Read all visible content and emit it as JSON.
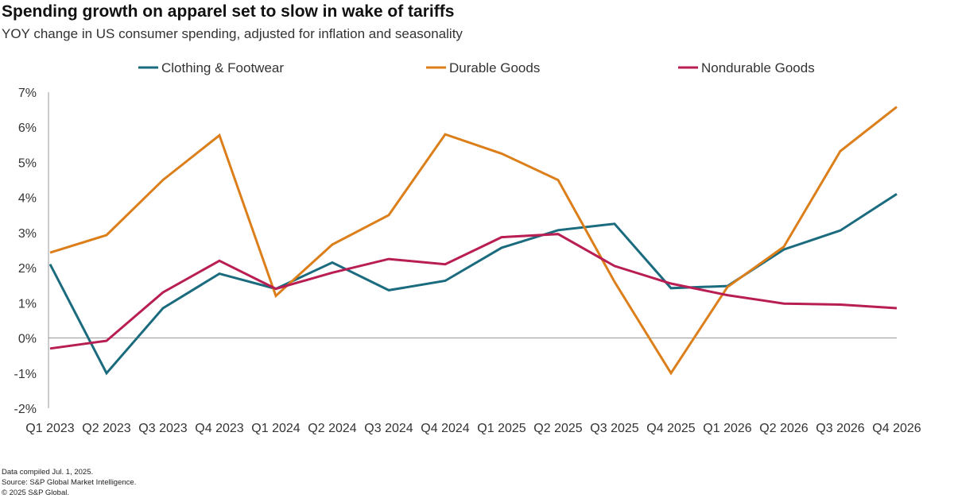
{
  "header": {
    "title": "Spending growth on apparel set to slow in wake of tariffs",
    "subtitle": "YOY change in US consumer spending, adjusted for inflation and seasonality"
  },
  "chart_data": {
    "type": "line",
    "title": "Spending growth on apparel set to slow in wake of tariffs",
    "subtitle": "YOY change in US consumer spending, adjusted for inflation and seasonality",
    "xlabel": "",
    "ylabel": "",
    "ylim": [
      -2,
      7
    ],
    "yticks": [
      7,
      6,
      5,
      4,
      3,
      2,
      1,
      0,
      -1,
      -2
    ],
    "ytick_labels": [
      "7%",
      "6%",
      "5%",
      "4%",
      "3%",
      "2%",
      "1%",
      "0%",
      "-1%",
      "-2%"
    ],
    "grid": false,
    "legend_position": "top",
    "categories": [
      "Q1 2023",
      "Q2 2023",
      "Q3 2023",
      "Q4 2023",
      "Q1 2024",
      "Q2 2024",
      "Q3 2024",
      "Q4 2024",
      "Q1 2025",
      "Q2 2025",
      "Q3 2025",
      "Q4 2025",
      "Q1 2026",
      "Q2 2026",
      "Q3 2026",
      "Q4 2026"
    ],
    "series": [
      {
        "name": "Clothing & Footwear",
        "color": "#1b6b7f",
        "values": [
          2.1,
          -1.0,
          0.85,
          1.83,
          1.4,
          2.15,
          1.36,
          1.63,
          2.57,
          3.07,
          3.25,
          1.42,
          1.48,
          2.52,
          3.06,
          4.1
        ]
      },
      {
        "name": "Durable Goods",
        "color": "#dc7f1b",
        "values": [
          2.43,
          2.93,
          4.5,
          5.77,
          1.2,
          2.66,
          3.5,
          5.8,
          5.25,
          4.5,
          1.6,
          -1.0,
          1.45,
          2.6,
          5.32,
          6.58
        ]
      },
      {
        "name": "Nondurable Goods",
        "color": "#b81d53",
        "values": [
          -0.3,
          -0.08,
          1.3,
          2.2,
          1.4,
          1.86,
          2.25,
          2.1,
          2.87,
          2.96,
          2.05,
          1.55,
          1.22,
          0.98,
          0.95,
          0.85
        ]
      }
    ]
  },
  "footer": {
    "line1": "Data compiled Jul. 1, 2025.",
    "line2": "Source: S&P Global Market Intelligence.",
    "line3": "© 2025 S&P Global."
  }
}
